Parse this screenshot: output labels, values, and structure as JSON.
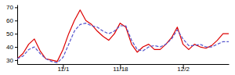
{
  "chart_data": {
    "type": "line",
    "x": [
      0,
      1,
      2,
      3,
      4,
      5,
      6,
      7,
      8,
      9,
      10,
      11,
      12,
      13,
      14,
      15,
      16,
      17,
      18,
      19,
      20,
      21,
      22,
      23,
      24,
      25,
      26,
      27,
      28,
      29,
      30,
      31,
      32,
      33,
      34,
      35,
      36,
      37
    ],
    "series": [
      {
        "color": "#dd0000",
        "line_style": "solid",
        "values": [
          31,
          35,
          42,
          46,
          37,
          31,
          30,
          29,
          38,
          50,
          60,
          68,
          60,
          57,
          52,
          48,
          45,
          50,
          58,
          55,
          42,
          36,
          40,
          42,
          38,
          38,
          42,
          47,
          55,
          42,
          38,
          42,
          40,
          39,
          41,
          45,
          50,
          50
        ]
      },
      {
        "color": "#5555cc",
        "line_style": "dashed",
        "values": [
          31,
          33,
          38,
          40,
          35,
          31,
          29,
          28,
          32,
          42,
          52,
          57,
          58,
          56,
          55,
          52,
          50,
          52,
          56,
          56,
          45,
          38,
          37,
          40,
          41,
          40,
          42,
          46,
          53,
          46,
          41,
          41,
          42,
          40,
          40,
          42,
          44,
          44
        ]
      }
    ],
    "xlim": [
      0,
      37
    ],
    "ylim": [
      27,
      72
    ],
    "xticks": [
      {
        "value": 8,
        "label": "11/1"
      },
      {
        "value": 18,
        "label": "11/18"
      },
      {
        "value": 29,
        "label": "12/2"
      }
    ],
    "yticks": [
      30,
      40,
      50,
      60,
      70
    ]
  }
}
